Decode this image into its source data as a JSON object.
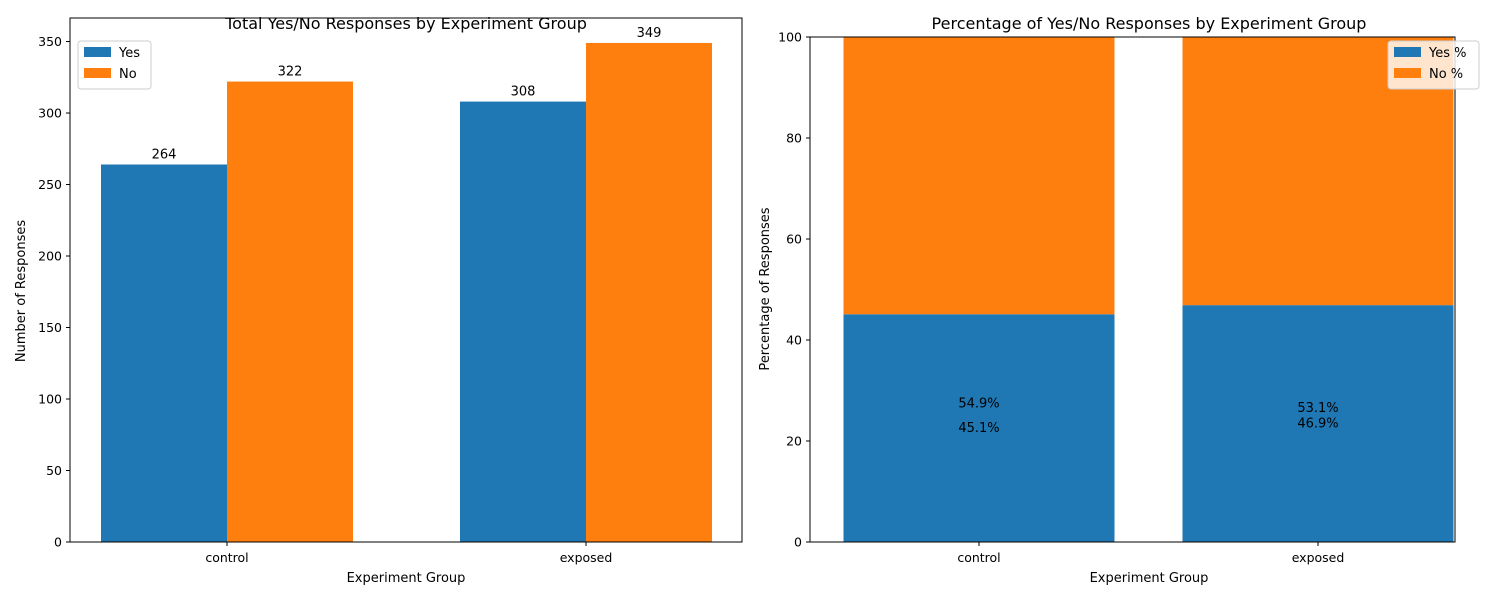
{
  "chart_data": [
    {
      "type": "bar",
      "title": "Total Yes/No Responses by Experiment Group",
      "xlabel": "Experiment Group",
      "ylabel": "Number of Responses",
      "categories": [
        "control",
        "exposed"
      ],
      "series": [
        {
          "name": "Yes",
          "values": [
            264,
            308
          ],
          "color": "#1f77b4"
        },
        {
          "name": "No",
          "values": [
            322,
            349
          ],
          "color": "#ff7f0e"
        }
      ],
      "data_labels": [
        [
          "264",
          "308"
        ],
        [
          "322",
          "349"
        ]
      ],
      "ylim": [
        0,
        366.45
      ],
      "yticks": [
        0,
        50,
        100,
        150,
        200,
        250,
        300,
        350
      ],
      "grid": false,
      "legend_position": "upper-left"
    },
    {
      "type": "stacked-bar",
      "title": "Percentage of Yes/No Responses by Experiment Group",
      "xlabel": "Experiment Group",
      "ylabel": "Percentage of Responses",
      "categories": [
        "control",
        "exposed"
      ],
      "series": [
        {
          "name": "Yes %",
          "values": [
            45.1,
            46.9
          ],
          "color": "#1f77b4"
        },
        {
          "name": "No %",
          "values": [
            54.9,
            53.1
          ],
          "color": "#ff7f0e"
        }
      ],
      "data_labels": [
        [
          "45.1%",
          "46.9%"
        ],
        [
          "54.9%",
          "53.1%"
        ]
      ],
      "ylim": [
        0,
        100
      ],
      "yticks": [
        0,
        20,
        40,
        60,
        80,
        100
      ],
      "grid": false,
      "legend_position": "upper-right"
    }
  ]
}
